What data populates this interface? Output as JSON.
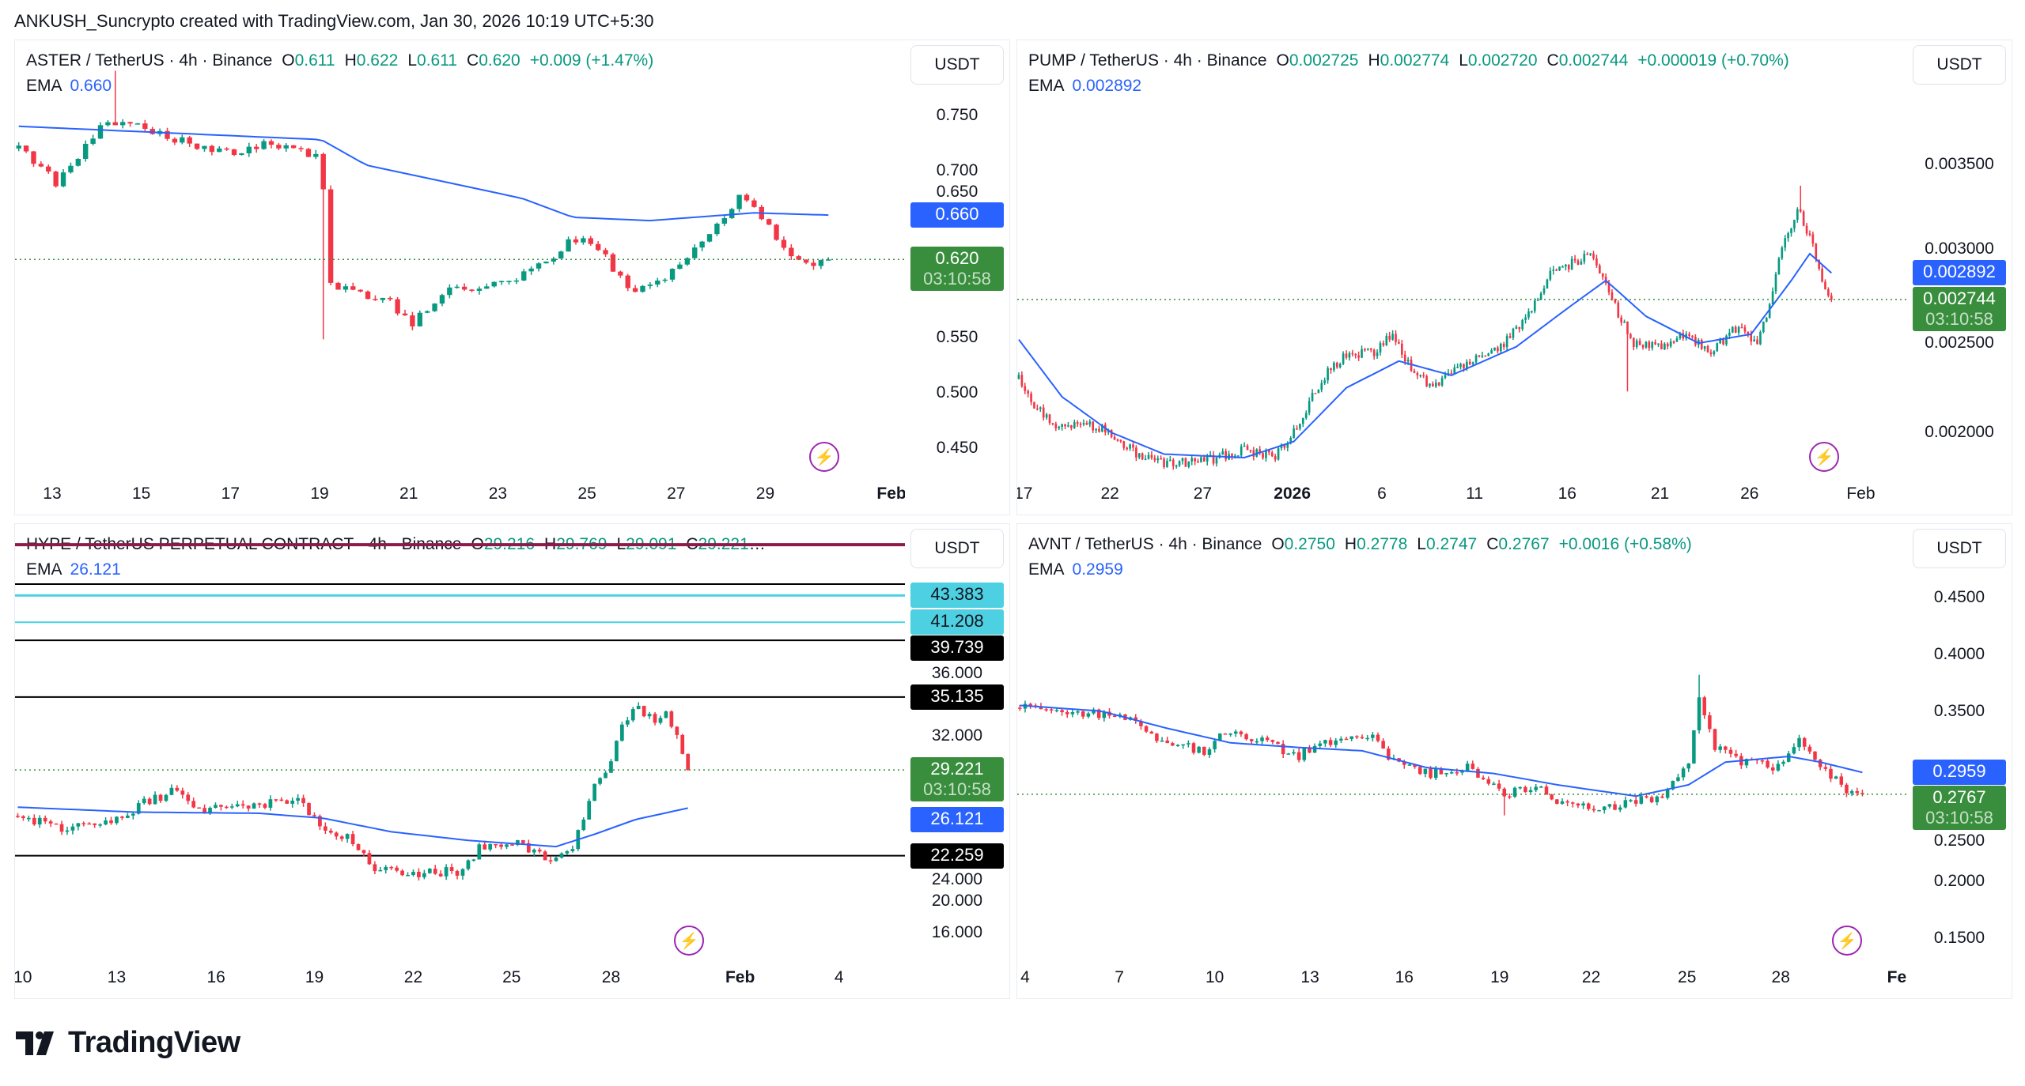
{
  "header": {
    "attribution": "ANKUSH_Suncrypto created with TradingView.com, Jan 30, 2026 10:19 UTC+5:30"
  },
  "footer": {
    "brand": "TradingView"
  },
  "colors": {
    "up": "#089981",
    "down": "#f23645",
    "ema": "#2962ff",
    "last": "#388e3c",
    "cyan": "#4dd0e1",
    "black": "#000000",
    "crimson": "#8e1a4a"
  },
  "chart_data": [
    {
      "type": "candlestick",
      "title": "ASTER / TetherUS · 4h · Binance",
      "ohlc": [
        {
          "k": "O",
          "v": "0.611"
        },
        {
          "k": "H",
          "v": "0.622"
        },
        {
          "k": "L",
          "v": "0.611"
        },
        {
          "k": "C",
          "v": "0.620"
        }
      ],
      "change": "+0.009 (+1.47%)",
      "truncated": "",
      "ema_label": "EMA",
      "ema_value": "0.660",
      "currency": "USDT",
      "ylim": [
        0.4115,
        0.8175
      ],
      "xlim": [
        0,
        119.8
      ],
      "last_bar": 109,
      "y_ticks": [
        {
          "t": "0.750",
          "p": 0.75
        },
        {
          "t": "0.700",
          "p": 0.7
        },
        {
          "t": "0.650",
          "p": 0.65
        },
        {
          "t": "0.550",
          "p": 0.55
        },
        {
          "t": "0.500",
          "p": 0.5
        },
        {
          "t": "0.450",
          "p": 0.45
        }
      ],
      "x_ticks": [
        {
          "t": "13",
          "b": 5
        },
        {
          "t": "15",
          "b": 17
        },
        {
          "t": "17",
          "b": 29
        },
        {
          "t": "19",
          "b": 41
        },
        {
          "t": "21",
          "b": 53
        },
        {
          "t": "23",
          "b": 65
        },
        {
          "t": "25",
          "b": 77
        },
        {
          "t": "27",
          "b": 89
        },
        {
          "t": "29",
          "b": 101
        },
        {
          "t": "Feb",
          "b": 118,
          "bold": true
        }
      ],
      "close_path": [
        [
          0,
          0.72
        ],
        [
          5,
          0.69
        ],
        [
          12,
          0.745
        ],
        [
          15.5,
          0.74
        ],
        [
          20.7,
          0.73
        ],
        [
          27.7,
          0.715
        ],
        [
          32.9,
          0.725
        ],
        [
          40.7,
          0.71
        ],
        [
          41.9,
          0.6
        ],
        [
          45,
          0.59
        ],
        [
          50.3,
          0.58
        ],
        [
          52.9,
          0.56
        ],
        [
          57.2,
          0.59
        ],
        [
          64.2,
          0.6
        ],
        [
          69.4,
          0.61
        ],
        [
          74.6,
          0.64
        ],
        [
          78.1,
          0.63
        ],
        [
          82.4,
          0.59
        ],
        [
          88.5,
          0.61
        ],
        [
          92.9,
          0.64
        ],
        [
          97.2,
          0.68
        ],
        [
          100.7,
          0.65
        ],
        [
          104.2,
          0.62
        ],
        [
          106.8,
          0.61
        ],
        [
          109,
          0.62
        ]
      ],
      "ema_path": [
        [
          0,
          0.74
        ],
        [
          40.7,
          0.728
        ],
        [
          46.8,
          0.705
        ],
        [
          67.8,
          0.675
        ],
        [
          74.6,
          0.658
        ],
        [
          85,
          0.655
        ],
        [
          99,
          0.662
        ],
        [
          109,
          0.66
        ]
      ],
      "spikes": [
        [
          41,
          0.548
        ],
        [
          13,
          0.79
        ]
      ],
      "levels": [],
      "labels": [
        {
          "value": "0.660",
          "p": 0.66,
          "kind": "ema"
        },
        {
          "value": "0.620",
          "p": 0.62,
          "kind": "last",
          "sub": "03:10:58"
        }
      ],
      "last_price": 0.62
    },
    {
      "type": "candlestick",
      "title": "PUMP / TetherUS · 4h · Binance",
      "ohlc": [
        {
          "k": "O",
          "v": "0.002725"
        },
        {
          "k": "H",
          "v": "0.002774"
        },
        {
          "k": "L",
          "v": "0.002720"
        },
        {
          "k": "C",
          "v": "0.002744"
        }
      ],
      "change": "+0.000019 (+0.70%)",
      "truncated": "",
      "ema_label": "EMA",
      "ema_value": "0.002892",
      "currency": "USDT",
      "ylim": [
        0.0016745,
        0.0041926
      ],
      "xlim": [
        0,
        288
      ],
      "last_bar": 263,
      "y_ticks": [
        {
          "t": "0.003500",
          "p": 0.0035
        },
        {
          "t": "0.003000",
          "p": 0.003
        },
        {
          "t": "0.002500",
          "p": 0.0025
        },
        {
          "t": "0.002000",
          "p": 0.002
        }
      ],
      "x_ticks": [
        {
          "t": "17",
          "b": 2
        },
        {
          "t": "22",
          "b": 30
        },
        {
          "t": "27",
          "b": 60
        },
        {
          "t": "2026",
          "b": 89,
          "bold": true
        },
        {
          "t": "6",
          "b": 118
        },
        {
          "t": "11",
          "b": 148
        },
        {
          "t": "16",
          "b": 178
        },
        {
          "t": "21",
          "b": 208
        },
        {
          "t": "26",
          "b": 237
        },
        {
          "t": "Feb",
          "b": 273
        }
      ],
      "close_path": [
        [
          0,
          0.0023
        ],
        [
          5,
          0.00215
        ],
        [
          11,
          0.00205
        ],
        [
          22,
          0.00205
        ],
        [
          30,
          0.002
        ],
        [
          39,
          0.00187
        ],
        [
          47,
          0.00183
        ],
        [
          60,
          0.00184
        ],
        [
          73,
          0.0019
        ],
        [
          83,
          0.00187
        ],
        [
          89,
          0.002
        ],
        [
          98,
          0.0023
        ],
        [
          106,
          0.00243
        ],
        [
          115,
          0.00245
        ],
        [
          121,
          0.00255
        ],
        [
          125,
          0.0024
        ],
        [
          134,
          0.00225
        ],
        [
          140,
          0.00235
        ],
        [
          149,
          0.00243
        ],
        [
          157,
          0.0025
        ],
        [
          165,
          0.00265
        ],
        [
          172,
          0.0029
        ],
        [
          180,
          0.00295
        ],
        [
          186,
          0.003
        ],
        [
          193,
          0.0027
        ],
        [
          199,
          0.0025
        ],
        [
          208,
          0.00248
        ],
        [
          216,
          0.00255
        ],
        [
          224,
          0.00245
        ],
        [
          233,
          0.0026
        ],
        [
          239,
          0.0025
        ],
        [
          243,
          0.0027
        ],
        [
          246,
          0.003
        ],
        [
          252,
          0.00325
        ],
        [
          256,
          0.0031
        ],
        [
          260,
          0.00285
        ],
        [
          263,
          0.002744
        ]
      ],
      "ema_path": [
        [
          0,
          0.00252
        ],
        [
          14,
          0.0022
        ],
        [
          30,
          0.002
        ],
        [
          47,
          0.00188
        ],
        [
          73,
          0.00186
        ],
        [
          89,
          0.00195
        ],
        [
          106,
          0.00225
        ],
        [
          123,
          0.0024
        ],
        [
          140,
          0.00232
        ],
        [
          161,
          0.00248
        ],
        [
          178,
          0.0027
        ],
        [
          190,
          0.00285
        ],
        [
          203,
          0.00265
        ],
        [
          220,
          0.0025
        ],
        [
          237,
          0.00255
        ],
        [
          250,
          0.00285
        ],
        [
          256,
          0.003
        ],
        [
          263,
          0.002892
        ]
      ],
      "spikes": [
        [
          197,
          0.00223
        ],
        [
          253,
          0.00338
        ]
      ],
      "levels": [],
      "labels": [
        {
          "value": "0.002892",
          "p": 0.002892,
          "kind": "ema"
        },
        {
          "value": "0.002744",
          "p": 0.002744,
          "kind": "last",
          "sub": "03:10:58"
        }
      ],
      "last_price": 0.002744
    },
    {
      "type": "candlestick",
      "title": "HYPE / TetherUS PERPETUAL CONTRACT · 4h · Binance",
      "ohlc": [
        {
          "k": "O",
          "v": "29.216"
        },
        {
          "k": "H",
          "v": "29.769"
        },
        {
          "k": "L",
          "v": "29.091"
        },
        {
          "k": "C",
          "v": "29.221"
        }
      ],
      "change": "",
      "truncated": "…",
      "ema_label": "EMA",
      "ema_value": "26.121",
      "currency": "USDT",
      "ylim": [
        12.61,
        49.18
      ],
      "xlim": [
        0,
        162
      ],
      "last_bar": 122,
      "y_ticks": [
        {
          "t": "36.000",
          "p": 36
        },
        {
          "t": "32.000",
          "p": 32
        },
        {
          "t": "24.000",
          "p": 24
        },
        {
          "t": "20.000",
          "p": 20
        },
        {
          "t": "16.000",
          "p": 16
        }
      ],
      "x_ticks": [
        {
          "t": "10",
          "b": 1.4
        },
        {
          "t": "13",
          "b": 18.5
        },
        {
          "t": "16",
          "b": 36.6
        },
        {
          "t": "19",
          "b": 54.5
        },
        {
          "t": "22",
          "b": 72.5
        },
        {
          "t": "25",
          "b": 90.4
        },
        {
          "t": "28",
          "b": 108.5
        },
        {
          "t": "Feb",
          "b": 132,
          "bold": true
        },
        {
          "t": "4",
          "b": 150
        }
      ],
      "close_path": [
        [
          0,
          25.5
        ],
        [
          7,
          24.5
        ],
        [
          16,
          24.8
        ],
        [
          23,
          26.5
        ],
        [
          28,
          27.5
        ],
        [
          33,
          26
        ],
        [
          44,
          26.3
        ],
        [
          51,
          27
        ],
        [
          55,
          24.5
        ],
        [
          61,
          23.5
        ],
        [
          65.5,
          21
        ],
        [
          72.5,
          20.8
        ],
        [
          81,
          21
        ],
        [
          84,
          23
        ],
        [
          91,
          23.5
        ],
        [
          96,
          22
        ],
        [
          101,
          22.5
        ],
        [
          104,
          27
        ],
        [
          108,
          30
        ],
        [
          110,
          33
        ],
        [
          112.5,
          34.5
        ],
        [
          116,
          33
        ],
        [
          118,
          34
        ],
        [
          120.7,
          31
        ],
        [
          122,
          29.221
        ]
      ],
      "ema_path": [
        [
          0,
          26.2
        ],
        [
          21,
          25.8
        ],
        [
          44,
          25.7
        ],
        [
          55.6,
          25.3
        ],
        [
          68,
          24.2
        ],
        [
          82,
          23.5
        ],
        [
          98,
          23
        ],
        [
          105,
          24
        ],
        [
          112.5,
          25.2
        ],
        [
          122,
          26.121
        ]
      ],
      "spikes": [],
      "levels": [
        {
          "p": 47.5,
          "color": "crimson",
          "w": 4
        },
        {
          "p": 44.3,
          "color": "black",
          "w": 2
        },
        {
          "p": 43.383,
          "color": "cyan",
          "w": 3
        },
        {
          "p": 41.208,
          "color": "cyan",
          "w": 2
        },
        {
          "p": 39.739,
          "color": "black",
          "w": 2
        },
        {
          "p": 35.135,
          "color": "black",
          "w": 2
        },
        {
          "p": 22.259,
          "color": "black",
          "w": 2
        }
      ],
      "labels": [
        {
          "value": "43.383",
          "p": 43.383,
          "kind": "cyan"
        },
        {
          "value": "41.208",
          "p": 41.208,
          "kind": "cyan"
        },
        {
          "value": "39.739",
          "p": 39.739,
          "kind": "black"
        },
        {
          "value": "35.135",
          "p": 35.135,
          "kind": "black"
        },
        {
          "value": "29.221",
          "p": 29.221,
          "kind": "last",
          "sub": "03:10:58"
        },
        {
          "value": "26.121",
          "p": 25.2,
          "kind": "ema"
        },
        {
          "value": "22.259",
          "p": 22.259,
          "kind": "black"
        }
      ],
      "last_price": 29.221
    },
    {
      "type": "candlestick",
      "title": "AVNT / TetherUS · 4h · Binance",
      "ohlc": [
        {
          "k": "O",
          "v": "0.2750"
        },
        {
          "k": "H",
          "v": "0.2778"
        },
        {
          "k": "L",
          "v": "0.2747"
        },
        {
          "k": "C",
          "v": "0.2767"
        }
      ],
      "change": "+0.0016 (+0.58%)",
      "truncated": "",
      "ema_label": "EMA",
      "ema_value": "0.2959",
      "currency": "USDT",
      "ylim": [
        0.1177,
        0.5149
      ],
      "xlim": [
        0,
        169
      ],
      "last_bar": 160,
      "y_ticks": [
        {
          "t": "0.4500",
          "p": 0.45
        },
        {
          "t": "0.4000",
          "p": 0.4
        },
        {
          "t": "0.3500",
          "p": 0.35
        },
        {
          "t": "0.2500",
          "p": 0.25
        },
        {
          "t": "0.2000",
          "p": 0.2
        },
        {
          "t": "0.1500",
          "p": 0.15
        }
      ],
      "x_ticks": [
        {
          "t": "4",
          "b": 1.5
        },
        {
          "t": "7",
          "b": 19.4
        },
        {
          "t": "10",
          "b": 37.5
        },
        {
          "t": "13",
          "b": 55.6
        },
        {
          "t": "16",
          "b": 73.5
        },
        {
          "t": "19",
          "b": 91.6
        },
        {
          "t": "22",
          "b": 109
        },
        {
          "t": "25",
          "b": 127.2
        },
        {
          "t": "28",
          "b": 145
        },
        {
          "t": "Feb",
          "b": 168,
          "bold": true
        }
      ],
      "close_path": [
        [
          0,
          0.353
        ],
        [
          10.4,
          0.35
        ],
        [
          20.3,
          0.345
        ],
        [
          25.3,
          0.325
        ],
        [
          35.2,
          0.315
        ],
        [
          39,
          0.33
        ],
        [
          45,
          0.325
        ],
        [
          52.6,
          0.31
        ],
        [
          60,
          0.325
        ],
        [
          66,
          0.33
        ],
        [
          71,
          0.305
        ],
        [
          77.4,
          0.295
        ],
        [
          85,
          0.3
        ],
        [
          92.3,
          0.275
        ],
        [
          97.3,
          0.285
        ],
        [
          102,
          0.27
        ],
        [
          112,
          0.265
        ],
        [
          122,
          0.275
        ],
        [
          127,
          0.3
        ],
        [
          129,
          0.36
        ],
        [
          132,
          0.32
        ],
        [
          137,
          0.305
        ],
        [
          144,
          0.3
        ],
        [
          148,
          0.33
        ],
        [
          152,
          0.3
        ],
        [
          157,
          0.28
        ],
        [
          160,
          0.2767
        ]
      ],
      "ema_path": [
        [
          0,
          0.355
        ],
        [
          15.4,
          0.35
        ],
        [
          27.8,
          0.335
        ],
        [
          40,
          0.322
        ],
        [
          52.6,
          0.318
        ],
        [
          65,
          0.315
        ],
        [
          77.4,
          0.3
        ],
        [
          90,
          0.295
        ],
        [
          102,
          0.285
        ],
        [
          117,
          0.275
        ],
        [
          127,
          0.285
        ],
        [
          134,
          0.305
        ],
        [
          146,
          0.31
        ],
        [
          152,
          0.305
        ],
        [
          160,
          0.2959
        ]
      ],
      "spikes": [
        [
          129,
          0.382
        ],
        [
          92,
          0.258
        ]
      ],
      "levels": [],
      "labels": [
        {
          "value": "0.2959",
          "p": 0.2959,
          "kind": "ema"
        },
        {
          "value": "0.2767",
          "p": 0.2767,
          "kind": "last",
          "sub": "03:10:58"
        }
      ],
      "last_price": 0.2767
    }
  ]
}
